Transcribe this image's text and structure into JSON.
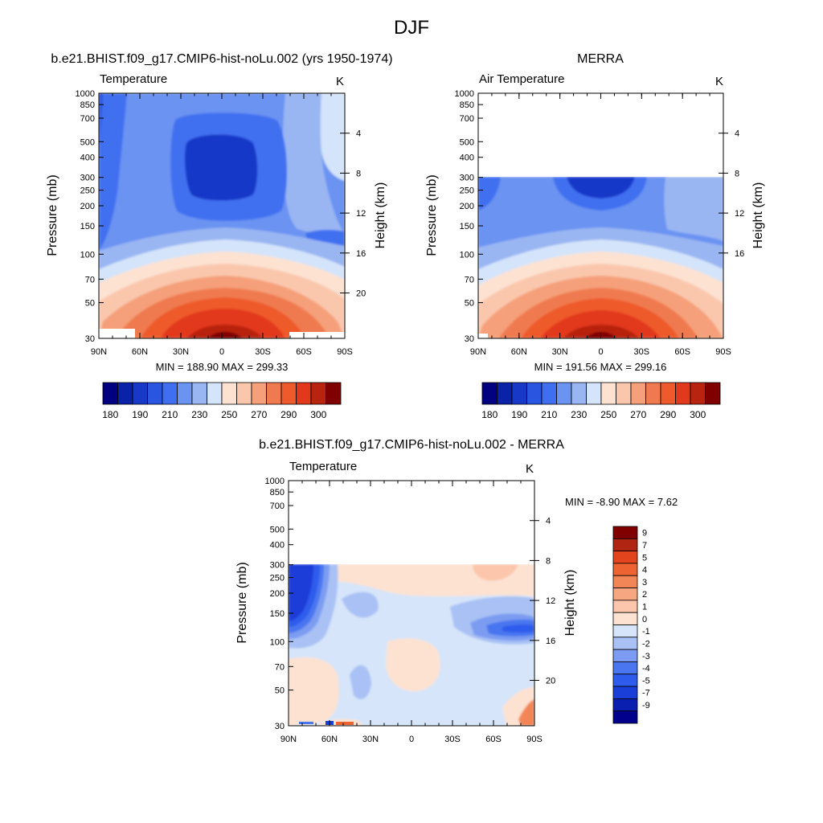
{
  "figure": {
    "title": "DJF"
  },
  "colors": {
    "temperature_scale": [
      "#000080",
      "#0a22a8",
      "#1838c8",
      "#2a55e0",
      "#3f6ff0",
      "#6a93f2",
      "#9ab6f2",
      "#d4e4fa",
      "#fde2d2",
      "#fac7ad",
      "#f5a07a",
      "#f07a50",
      "#ee5a2c",
      "#e2391c",
      "#b82410",
      "#800000"
    ],
    "difference_scale": [
      "#00008c",
      "#0a1fb0",
      "#1a3ed8",
      "#2d5bec",
      "#4a76f0",
      "#7b9cf2",
      "#a9c1f4",
      "#d6e5fa",
      "#fde2d2",
      "#fbc6ab",
      "#f6a680",
      "#f28656",
      "#ed6432",
      "#e2451e",
      "#b02512",
      "#800000"
    ]
  },
  "chart_data": [
    {
      "type": "heatmap",
      "panel": "model",
      "title": "b.e21.BHIST.f09_g17.CMIP6-hist-noLu.002 (yrs 1950-1974)",
      "left_string": "Temperature",
      "right_string": "K",
      "ylabel": "Pressure (mb)",
      "y2label": "Height (km)",
      "x_ticks": [
        "90N",
        "60N",
        "30N",
        "0",
        "30S",
        "60S",
        "90S"
      ],
      "y_ticks": [
        "30",
        "50",
        "70",
        "100",
        "150",
        "200",
        "250",
        "300",
        "400",
        "500",
        "700",
        "850",
        "1000"
      ],
      "y2_ticks": [
        "20",
        "16",
        "12",
        "8",
        "4"
      ],
      "stats": "MIN = 188.90  MAX = 299.33",
      "min": 188.9,
      "max": 299.33,
      "colorbar_labels": [
        "180",
        "190",
        "210",
        "230",
        "250",
        "270",
        "290",
        "300"
      ]
    },
    {
      "type": "heatmap",
      "panel": "obs",
      "title": "MERRA",
      "left_string": "Air Temperature",
      "right_string": "K",
      "ylabel": "Pressure (mb)",
      "y2label": "Height (km)",
      "x_ticks": [
        "90N",
        "60N",
        "30N",
        "0",
        "30S",
        "60S",
        "90S"
      ],
      "y_ticks": [
        "30",
        "50",
        "70",
        "100",
        "150",
        "200",
        "250",
        "300",
        "400",
        "500",
        "700",
        "850",
        "1000"
      ],
      "y2_ticks": [
        "16",
        "12",
        "8",
        "4"
      ],
      "stats": "MIN = 191.56  MAX = 299.16",
      "min": 191.56,
      "max": 299.16,
      "colorbar_labels": [
        "180",
        "190",
        "210",
        "230",
        "250",
        "270",
        "290",
        "300"
      ]
    },
    {
      "type": "heatmap",
      "panel": "difference",
      "title": "b.e21.BHIST.f09_g17.CMIP6-hist-noLu.002 - MERRA",
      "left_string": "Temperature",
      "right_string": "K",
      "ylabel": "Pressure (mb)",
      "y2label": "Height (km)",
      "x_ticks": [
        "90N",
        "60N",
        "30N",
        "0",
        "30S",
        "60S",
        "90S"
      ],
      "y_ticks": [
        "30",
        "50",
        "70",
        "100",
        "150",
        "200",
        "250",
        "300",
        "400",
        "500",
        "700",
        "850",
        "1000"
      ],
      "y2_ticks": [
        "20",
        "16",
        "12",
        "8",
        "4"
      ],
      "stats": "MIN =  -8.90  MAX =   7.62",
      "min": -8.9,
      "max": 7.62,
      "colorbar_labels": [
        "9",
        "7",
        "5",
        "4",
        "3",
        "2",
        "1",
        "0",
        "-1",
        "-2",
        "-3",
        "-4",
        "-5",
        "-7",
        "-9"
      ]
    }
  ]
}
